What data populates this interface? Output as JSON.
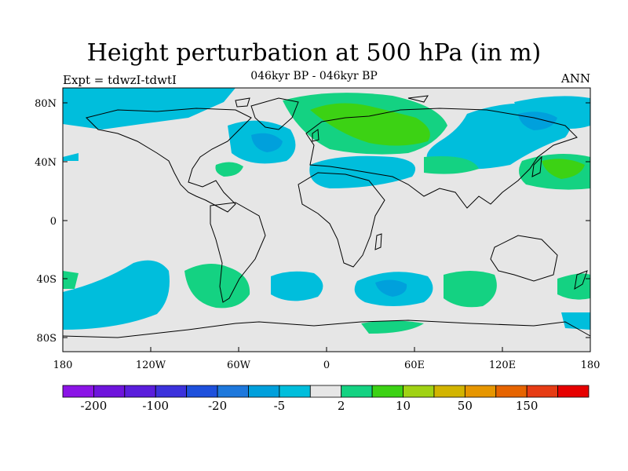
{
  "header": {
    "title": "Height perturbation at 500 hPa (in m)",
    "subtitle": "046kyr BP - 046kyr BP",
    "left_note": "Expt = tdwzI-tdwtI",
    "right_note": "ANN"
  },
  "map": {
    "background_color": "#e6e6e6",
    "lat_ticks": [
      "80N",
      "40N",
      "0",
      "40S",
      "80S"
    ],
    "lon_ticks": [
      "180",
      "120W",
      "60W",
      "0",
      "60E",
      "120E",
      "180"
    ]
  },
  "colorbar": {
    "colors": [
      "#8b14e6",
      "#6e14dc",
      "#5a1edc",
      "#3c32dc",
      "#1e50dc",
      "#1e78dc",
      "#00a0dc",
      "#00bedc",
      "#e6e6e6",
      "#14d282",
      "#3cd214",
      "#a0d214",
      "#d2b400",
      "#e69600",
      "#e66400",
      "#e63c14",
      "#e60000"
    ],
    "labels": [
      "-200",
      "-100",
      "-20",
      "-5",
      "2",
      "10",
      "50",
      "150"
    ]
  }
}
